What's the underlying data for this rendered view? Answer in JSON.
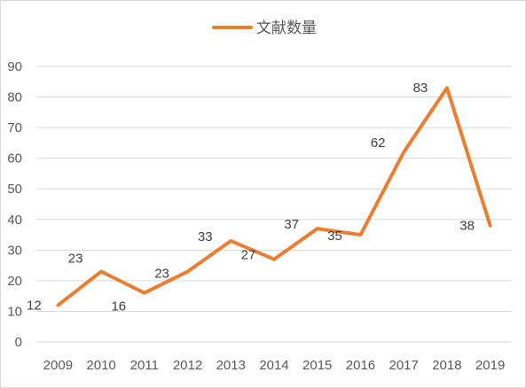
{
  "chart_data": {
    "type": "line",
    "title": "",
    "xlabel": "",
    "ylabel": "",
    "categories": [
      "2009",
      "2010",
      "2011",
      "2012",
      "2013",
      "2014",
      "2015",
      "2016",
      "2017",
      "2018",
      "2019"
    ],
    "series": [
      {
        "name": "文献数量",
        "values": [
          12,
          23,
          16,
          23,
          33,
          27,
          37,
          35,
          62,
          83,
          38
        ],
        "color": "#ed7d31"
      }
    ],
    "ylim": [
      0,
      90
    ],
    "yticks": [
      0,
      10,
      20,
      30,
      40,
      50,
      60,
      70,
      80,
      90
    ],
    "grid": true,
    "legend": "top-center",
    "data_labels": true
  }
}
